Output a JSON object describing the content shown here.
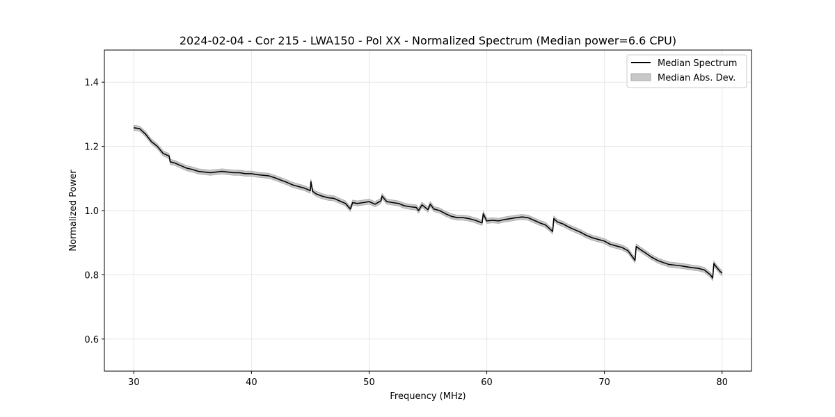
{
  "chart_data": {
    "type": "line",
    "title": "2024-02-04 - Cor 215 - LWA150 - Pol XX - Normalized Spectrum (Median power=6.6 CPU)",
    "xlabel": "Frequency (MHz)",
    "ylabel": "Normalized Power",
    "xlim": [
      27.5,
      82.5
    ],
    "ylim": [
      0.5,
      1.5
    ],
    "grid": true,
    "xticks": [
      30,
      40,
      50,
      60,
      70,
      80
    ],
    "xtick_labels": [
      "30",
      "40",
      "50",
      "60",
      "70",
      "80"
    ],
    "yticks": [
      0.6,
      0.8,
      1.0,
      1.2,
      1.4
    ],
    "ytick_labels": [
      "0.6",
      "0.8",
      "1.0",
      "1.2",
      "1.4"
    ],
    "legend": {
      "placement": "top-right",
      "entries": [
        "Median Spectrum",
        "Median Abs. Dev."
      ]
    },
    "series": [
      {
        "name": "Median Spectrum",
        "color": "#000000",
        "x": [
          30.0,
          30.5,
          31.0,
          31.5,
          32.0,
          32.5,
          33.0,
          33.1,
          33.5,
          34.0,
          34.5,
          35.0,
          35.5,
          36.0,
          36.5,
          37.0,
          37.5,
          38.0,
          38.5,
          39.0,
          39.5,
          40.0,
          40.5,
          41.0,
          41.5,
          42.0,
          42.5,
          43.0,
          43.5,
          44.0,
          44.5,
          45.0,
          45.05,
          45.2,
          45.5,
          46.0,
          46.5,
          47.0,
          47.5,
          48.0,
          48.4,
          48.6,
          49.0,
          49.5,
          50.0,
          50.5,
          51.0,
          51.1,
          51.5,
          52.0,
          52.5,
          53.0,
          53.5,
          54.0,
          54.2,
          54.5,
          55.0,
          55.2,
          55.5,
          56.0,
          56.5,
          57.0,
          57.5,
          58.0,
          58.5,
          59.0,
          59.6,
          59.7,
          60.0,
          60.5,
          61.0,
          61.5,
          62.0,
          62.5,
          63.0,
          63.5,
          64.0,
          64.5,
          65.0,
          65.6,
          65.7,
          66.0,
          66.5,
          67.0,
          67.5,
          68.0,
          68.5,
          69.0,
          69.5,
          70.0,
          70.5,
          71.0,
          71.5,
          72.0,
          72.6,
          72.7,
          73.0,
          73.5,
          74.0,
          74.5,
          75.0,
          75.5,
          76.0,
          76.5,
          77.0,
          77.5,
          78.0,
          78.5,
          79.0,
          79.2,
          79.3,
          79.5,
          79.8,
          80.0
        ],
        "y": [
          1.258,
          1.255,
          1.238,
          1.215,
          1.2,
          1.178,
          1.17,
          1.152,
          1.148,
          1.14,
          1.132,
          1.128,
          1.122,
          1.12,
          1.118,
          1.12,
          1.122,
          1.12,
          1.118,
          1.118,
          1.115,
          1.115,
          1.112,
          1.11,
          1.108,
          1.102,
          1.095,
          1.088,
          1.08,
          1.075,
          1.07,
          1.062,
          1.09,
          1.06,
          1.052,
          1.045,
          1.04,
          1.038,
          1.03,
          1.022,
          1.005,
          1.025,
          1.022,
          1.025,
          1.028,
          1.02,
          1.03,
          1.045,
          1.028,
          1.025,
          1.022,
          1.015,
          1.012,
          1.01,
          1.0,
          1.018,
          1.003,
          1.02,
          1.005,
          1.0,
          0.99,
          0.982,
          0.978,
          0.978,
          0.975,
          0.97,
          0.962,
          0.99,
          0.968,
          0.97,
          0.968,
          0.972,
          0.975,
          0.978,
          0.98,
          0.978,
          0.97,
          0.962,
          0.955,
          0.935,
          0.975,
          0.965,
          0.958,
          0.948,
          0.94,
          0.932,
          0.922,
          0.915,
          0.91,
          0.905,
          0.895,
          0.89,
          0.885,
          0.875,
          0.845,
          0.888,
          0.88,
          0.868,
          0.855,
          0.845,
          0.838,
          0.832,
          0.83,
          0.828,
          0.825,
          0.822,
          0.82,
          0.815,
          0.8,
          0.79,
          0.835,
          0.825,
          0.812,
          0.805
        ]
      }
    ],
    "mad_band": {
      "name": "Median Abs. Dev.",
      "color": "#c8c8c8",
      "half_width": 0.008
    }
  }
}
